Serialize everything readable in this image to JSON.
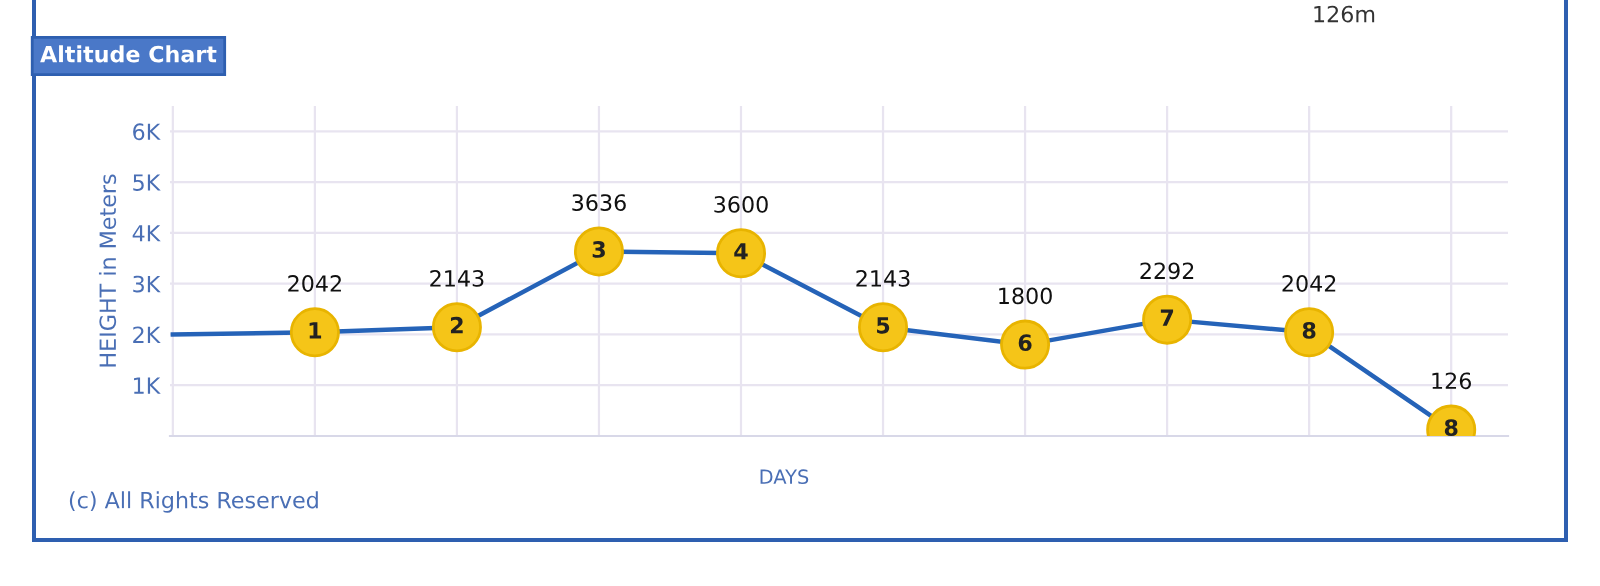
{
  "chart_data": {
    "type": "line",
    "title": "Altitude Chart",
    "xlabel": "DAYS",
    "ylabel": "HEIGHT in Meters",
    "categories": [
      null,
      "1",
      "2",
      "3",
      "4",
      "5",
      "6",
      "7",
      "8",
      "8"
    ],
    "series": [
      {
        "color": "#2563b8",
        "values": [
          2000,
          2042,
          2143,
          3636,
          3600,
          2143,
          1800,
          2292,
          2042,
          126
        ],
        "value_labels": [
          null,
          "2042",
          "2143",
          "3636",
          "3600",
          "2143",
          "1800",
          "2292",
          "2042",
          "126"
        ]
      }
    ],
    "ylim": [
      0,
      6500
    ],
    "yticks": [
      {
        "value": 1000,
        "label": "1K"
      },
      {
        "value": 2000,
        "label": "2K"
      },
      {
        "value": 3000,
        "label": "3K"
      },
      {
        "value": 4000,
        "label": "4K"
      },
      {
        "value": 5000,
        "label": "5K"
      },
      {
        "value": 6000,
        "label": "6K"
      }
    ],
    "tick_labels": "y",
    "grid": true,
    "marker": "circle",
    "line_style": "solid",
    "legend": false,
    "annotations": [
      "(c) All Rights Reserved",
      "126m"
    ]
  }
}
